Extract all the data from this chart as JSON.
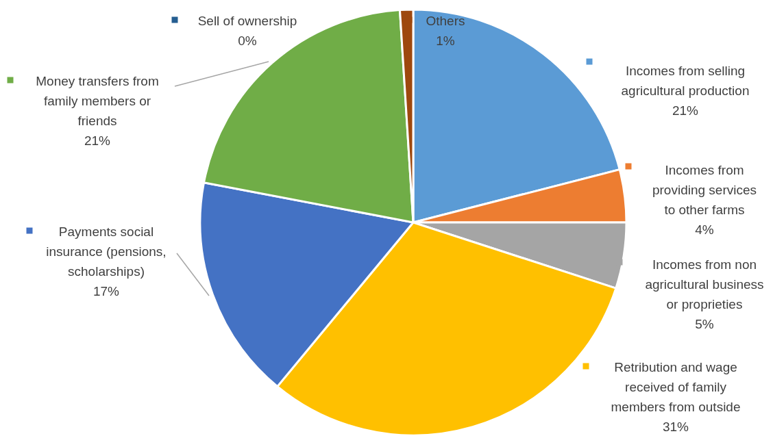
{
  "chart_data": {
    "type": "pie",
    "categories": [
      "Incomes from selling agricultural production",
      "Incomes from providing services to other farms",
      "Incomes from non agricultural business or proprieties",
      "Retribution and wage received of family members from outside",
      "Payments social insurance (pensions, scholarships)",
      "Money transfers from family members or friends",
      "Sell of ownership",
      "Others"
    ],
    "values": [
      21,
      4,
      5,
      31,
      17,
      21,
      0,
      1
    ],
    "value_labels": [
      "21%",
      "4%",
      "5%",
      "31%",
      "17%",
      "21%",
      "0%",
      "1%"
    ],
    "legend": "top left",
    "colors": [
      "#5b9bd5",
      "#ed7d31",
      "#a5a5a5",
      "#ffc000",
      "#4472c4",
      "#70ad47",
      "#255e91",
      "#9e480e"
    ]
  }
}
